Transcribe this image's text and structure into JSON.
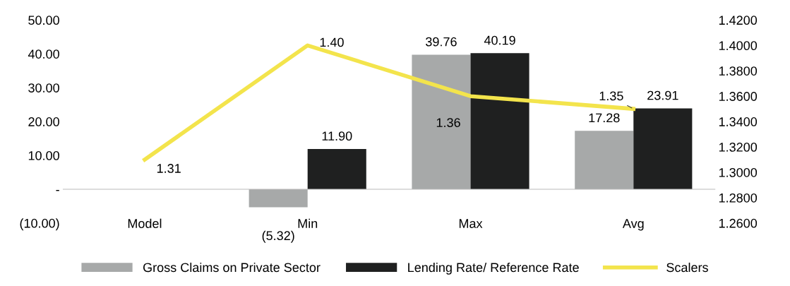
{
  "chart_data": {
    "type": "bar",
    "categories": [
      "Model",
      "Min",
      "Max",
      "Avg"
    ],
    "series": [
      {
        "name": "Gross Claims on Private Sector",
        "color": "#a7a9a9",
        "values": [
          null,
          -5.32,
          39.76,
          17.28
        ],
        "value_labels": [
          null,
          "(5.32)",
          "39.76",
          "17.28"
        ]
      },
      {
        "name": "Lending Rate/ Reference Rate",
        "color": "#1f2020",
        "values": [
          null,
          11.9,
          40.19,
          23.91
        ],
        "value_labels": [
          null,
          "11.90",
          "40.19",
          "23.91"
        ]
      },
      {
        "name": "Scalers",
        "type": "line",
        "axis": "y2",
        "color": "#f3e44c",
        "values": [
          1.31,
          1.4,
          1.36,
          1.35
        ],
        "value_labels": [
          "1.31",
          "1.40",
          "1.36",
          "1.35"
        ]
      }
    ],
    "ylim": [
      -10,
      50
    ],
    "yticks": [
      {
        "value": -10,
        "label": "(10.00)"
      },
      {
        "value": 0,
        "label": "-"
      },
      {
        "value": 10,
        "label": "10.00"
      },
      {
        "value": 20,
        "label": "20.00"
      },
      {
        "value": 30,
        "label": "30.00"
      },
      {
        "value": 40,
        "label": "40.00"
      },
      {
        "value": 50,
        "label": "50.00"
      }
    ],
    "y2lim": [
      1.26,
      1.42
    ],
    "y2ticks": [
      {
        "value": 1.26,
        "label": "1.2600"
      },
      {
        "value": 1.28,
        "label": "1.2800"
      },
      {
        "value": 1.3,
        "label": "1.3000"
      },
      {
        "value": 1.32,
        "label": "1.3200"
      },
      {
        "value": 1.34,
        "label": "1.3400"
      },
      {
        "value": 1.36,
        "label": "1.3600"
      },
      {
        "value": 1.38,
        "label": "1.3800"
      },
      {
        "value": 1.4,
        "label": "1.4000"
      },
      {
        "value": 1.42,
        "label": "1.4200"
      }
    ],
    "grid": false,
    "legend": "bottom"
  }
}
